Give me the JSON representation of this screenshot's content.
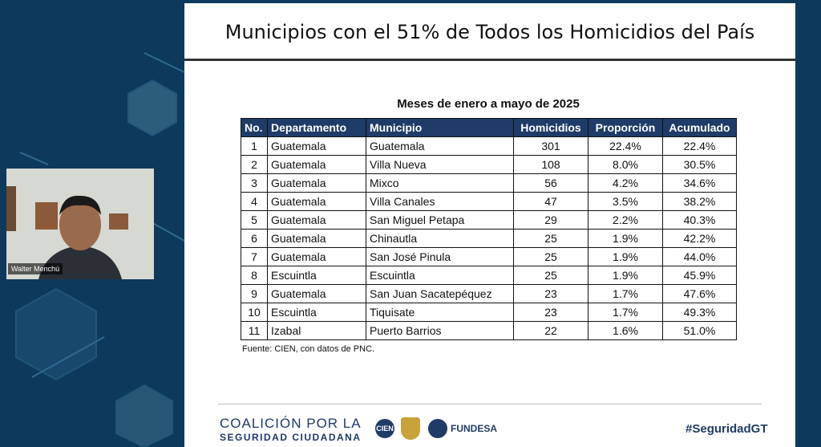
{
  "slide": {
    "title": "Municipios con el 51% de Todos los Homicidios del País",
    "table": {
      "caption": "Meses de enero a mayo de 2025",
      "headers": [
        "No.",
        "Departamento",
        "Municipio",
        "Homicidios",
        "Proporción",
        "Acumulado"
      ],
      "rows": [
        [
          "1",
          "Guatemala",
          "Guatemala",
          "301",
          "22.4%",
          "22.4%"
        ],
        [
          "2",
          "Guatemala",
          "Villa Nueva",
          "108",
          "8.0%",
          "30.5%"
        ],
        [
          "3",
          "Guatemala",
          "Mixco",
          "56",
          "4.2%",
          "34.6%"
        ],
        [
          "4",
          "Guatemala",
          "Villa Canales",
          "47",
          "3.5%",
          "38.2%"
        ],
        [
          "5",
          "Guatemala",
          "San Miguel Petapa",
          "29",
          "2.2%",
          "40.3%"
        ],
        [
          "6",
          "Guatemala",
          "Chinautla",
          "25",
          "1.9%",
          "42.2%"
        ],
        [
          "7",
          "Guatemala",
          "San José Pinula",
          "25",
          "1.9%",
          "44.0%"
        ],
        [
          "8",
          "Escuintla",
          "Escuintla",
          "25",
          "1.9%",
          "45.9%"
        ],
        [
          "9",
          "Guatemala",
          "San Juan Sacatepéquez",
          "23",
          "1.7%",
          "47.6%"
        ],
        [
          "10",
          "Escuintla",
          "Tiquisate",
          "23",
          "1.7%",
          "49.3%"
        ],
        [
          "11",
          "Izabal",
          "Puerto Barrios",
          "22",
          "1.6%",
          "51.0%"
        ]
      ]
    },
    "source": "Fuente: CIEN, con datos de PNC.",
    "footer": {
      "coalition_line1": "COALICIÓN POR LA",
      "coalition_line2": "SEGURIDAD CIUDADANA",
      "logo1": "CIEN",
      "logo2": "FUNDESA",
      "hashtag": "#SeguridadGT"
    }
  },
  "participant": {
    "name": "Walter Menchú"
  }
}
